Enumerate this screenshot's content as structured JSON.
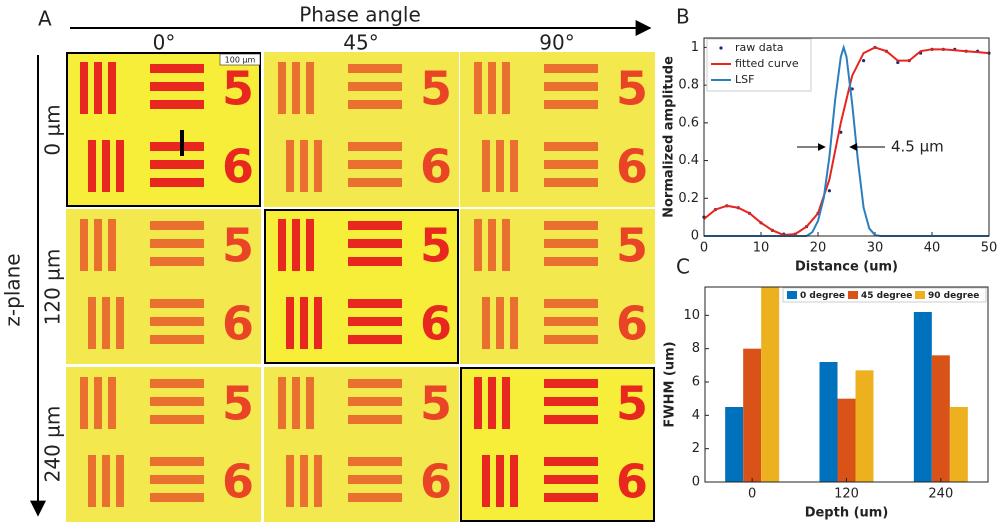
{
  "panel_a": {
    "label": "A",
    "column_axis": "Phase angle",
    "columns": [
      "0°",
      "45°",
      "90°"
    ],
    "row_axis": "z-plane",
    "rows": [
      "0 µm",
      "120 µm",
      "240 µm"
    ],
    "scale_bar": "100 µm",
    "digits": [
      "5",
      "6"
    ]
  },
  "chart_data": [
    {
      "type": "line",
      "label": "B",
      "xlabel": "Distance (um)",
      "ylabel": "Normalized amplitude",
      "xlim": [
        0,
        50
      ],
      "ylim": [
        0,
        1.05
      ],
      "xticks": [
        0,
        10,
        20,
        30,
        40,
        50
      ],
      "yticks": [
        0,
        0.2,
        0.4,
        0.6,
        0.8,
        1
      ],
      "legend": "upper-left",
      "annotation": "4.5 µm",
      "series": [
        {
          "name": "raw data",
          "color": "#1f2a80",
          "marker": "dot",
          "x": [
            0,
            2,
            4,
            6,
            8,
            10,
            12,
            14,
            16,
            18,
            20,
            22,
            24,
            26,
            28,
            30,
            32,
            34,
            36,
            38,
            40,
            42,
            44,
            46,
            48,
            50
          ],
          "values": [
            0.1,
            0.14,
            0.16,
            0.15,
            0.12,
            0.07,
            0.03,
            0.01,
            0.01,
            0.05,
            0.12,
            0.24,
            0.55,
            0.78,
            0.93,
            1.0,
            0.98,
            0.92,
            0.93,
            0.97,
            0.99,
            0.99,
            0.99,
            0.98,
            0.98,
            0.97
          ]
        },
        {
          "name": "fitted curve",
          "color": "#e8241c",
          "x": [
            0,
            2,
            4,
            6,
            8,
            10,
            12,
            14,
            16,
            18,
            20,
            22,
            24,
            26,
            28,
            30,
            32,
            34,
            36,
            38,
            40,
            42,
            44,
            46,
            48,
            50
          ],
          "values": [
            0.09,
            0.14,
            0.16,
            0.15,
            0.12,
            0.07,
            0.03,
            0.005,
            0.01,
            0.05,
            0.12,
            0.3,
            0.6,
            0.85,
            0.97,
            1.0,
            0.98,
            0.93,
            0.93,
            0.98,
            0.99,
            0.99,
            0.985,
            0.98,
            0.975,
            0.97
          ]
        },
        {
          "name": "LSF",
          "color": "#2a7fc0",
          "x": [
            0,
            10,
            15,
            18,
            19,
            20,
            21,
            22,
            23,
            24,
            24.5,
            25,
            26,
            27,
            28,
            29,
            30,
            31,
            40,
            50
          ],
          "values": [
            0,
            0,
            0,
            0,
            0.02,
            0.08,
            0.2,
            0.42,
            0.72,
            0.95,
            1.0,
            0.95,
            0.7,
            0.4,
            0.15,
            0.04,
            0.005,
            0,
            0,
            0
          ]
        }
      ]
    },
    {
      "type": "bar",
      "label": "C",
      "xlabel": "Depth (um)",
      "ylabel": "FWHM (um)",
      "categories": [
        "0",
        "120",
        "240"
      ],
      "ylim": [
        0,
        11.7
      ],
      "yticks": [
        0,
        2,
        4,
        6,
        8,
        10
      ],
      "legend": "top",
      "series": [
        {
          "name": "0 degree",
          "color": "#0072bd",
          "values": [
            4.5,
            7.2,
            10.2
          ]
        },
        {
          "name": "45 degree",
          "color": "#d95319",
          "values": [
            8.0,
            5.0,
            7.6
          ]
        },
        {
          "name": "90 degree",
          "color": "#edb120",
          "values": [
            11.7,
            6.7,
            4.5
          ]
        }
      ]
    }
  ]
}
